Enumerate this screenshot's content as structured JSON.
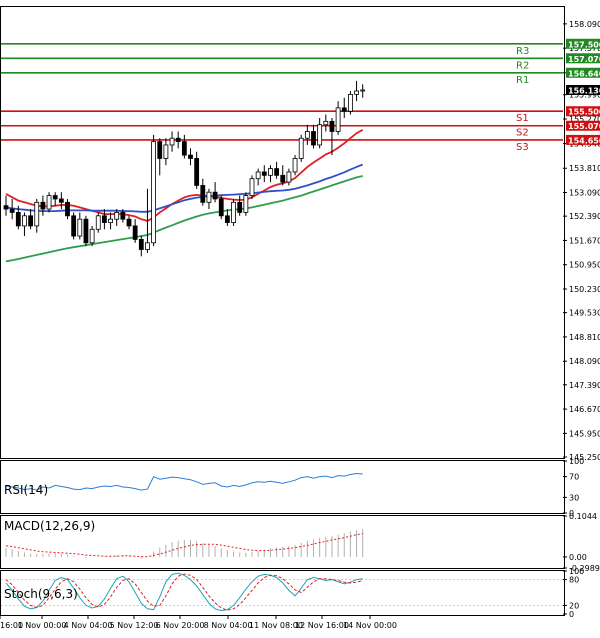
{
  "chart_data": {
    "type": "candlestick",
    "main": {
      "ylim": [
        145.25,
        158.59
      ],
      "y_ticks": [
        "158.090",
        "157.370",
        "156.640",
        "155.990",
        "155.270",
        "154.540",
        "153.810",
        "153.090",
        "152.390",
        "151.670",
        "150.950",
        "150.230",
        "149.530",
        "148.810",
        "148.090",
        "147.390",
        "146.670",
        "145.950",
        "145.250"
      ],
      "candles": [
        {
          "o": 152.7,
          "h": 153.0,
          "l": 152.4,
          "c": 152.6
        },
        {
          "o": 152.6,
          "h": 152.9,
          "l": 152.3,
          "c": 152.5
        },
        {
          "o": 152.5,
          "h": 152.7,
          "l": 152.0,
          "c": 152.1
        },
        {
          "o": 152.1,
          "h": 152.5,
          "l": 151.8,
          "c": 152.4
        },
        {
          "o": 152.4,
          "h": 152.6,
          "l": 152.0,
          "c": 152.1
        },
        {
          "o": 152.1,
          "h": 152.9,
          "l": 151.9,
          "c": 152.8
        },
        {
          "o": 152.8,
          "h": 153.0,
          "l": 152.4,
          "c": 152.6
        },
        {
          "o": 152.6,
          "h": 153.1,
          "l": 152.5,
          "c": 153.0
        },
        {
          "o": 153.0,
          "h": 153.1,
          "l": 152.7,
          "c": 152.9
        },
        {
          "o": 152.9,
          "h": 153.1,
          "l": 152.6,
          "c": 152.8
        },
        {
          "o": 152.8,
          "h": 152.9,
          "l": 152.3,
          "c": 152.4
        },
        {
          "o": 152.4,
          "h": 152.5,
          "l": 151.7,
          "c": 151.8
        },
        {
          "o": 151.8,
          "h": 152.5,
          "l": 151.7,
          "c": 152.3
        },
        {
          "o": 152.3,
          "h": 152.4,
          "l": 151.5,
          "c": 151.6
        },
        {
          "o": 151.6,
          "h": 152.1,
          "l": 151.5,
          "c": 152.0
        },
        {
          "o": 152.0,
          "h": 152.5,
          "l": 151.9,
          "c": 152.4
        },
        {
          "o": 152.4,
          "h": 152.6,
          "l": 152.0,
          "c": 152.2
        },
        {
          "o": 152.2,
          "h": 152.5,
          "l": 152.0,
          "c": 152.3
        },
        {
          "o": 152.3,
          "h": 152.6,
          "l": 152.1,
          "c": 152.5
        },
        {
          "o": 152.5,
          "h": 152.6,
          "l": 152.2,
          "c": 152.3
        },
        {
          "o": 152.3,
          "h": 152.4,
          "l": 152.0,
          "c": 152.1
        },
        {
          "o": 152.1,
          "h": 152.3,
          "l": 151.6,
          "c": 151.7
        },
        {
          "o": 151.7,
          "h": 151.8,
          "l": 151.2,
          "c": 151.4
        },
        {
          "o": 151.4,
          "h": 153.2,
          "l": 151.3,
          "c": 151.6
        },
        {
          "o": 151.6,
          "h": 154.8,
          "l": 151.5,
          "c": 154.6
        },
        {
          "o": 154.6,
          "h": 154.7,
          "l": 153.6,
          "c": 154.1
        },
        {
          "o": 154.1,
          "h": 154.7,
          "l": 153.9,
          "c": 154.5
        },
        {
          "o": 154.5,
          "h": 154.9,
          "l": 154.3,
          "c": 154.7
        },
        {
          "o": 154.7,
          "h": 154.9,
          "l": 154.4,
          "c": 154.6
        },
        {
          "o": 154.6,
          "h": 154.8,
          "l": 154.1,
          "c": 154.2
        },
        {
          "o": 154.2,
          "h": 154.4,
          "l": 153.9,
          "c": 154.1
        },
        {
          "o": 154.1,
          "h": 154.3,
          "l": 153.2,
          "c": 153.3
        },
        {
          "o": 153.3,
          "h": 153.5,
          "l": 152.7,
          "c": 152.8
        },
        {
          "o": 152.8,
          "h": 153.2,
          "l": 152.6,
          "c": 153.1
        },
        {
          "o": 153.1,
          "h": 153.4,
          "l": 152.8,
          "c": 152.9
        },
        {
          "o": 152.9,
          "h": 153.0,
          "l": 152.3,
          "c": 152.4
        },
        {
          "o": 152.4,
          "h": 152.6,
          "l": 152.1,
          "c": 152.2
        },
        {
          "o": 152.2,
          "h": 152.9,
          "l": 152.1,
          "c": 152.8
        },
        {
          "o": 152.8,
          "h": 153.0,
          "l": 152.4,
          "c": 152.5
        },
        {
          "o": 152.5,
          "h": 153.1,
          "l": 152.4,
          "c": 153.0
        },
        {
          "o": 153.0,
          "h": 153.6,
          "l": 152.9,
          "c": 153.5
        },
        {
          "o": 153.5,
          "h": 153.8,
          "l": 153.3,
          "c": 153.7
        },
        {
          "o": 153.7,
          "h": 153.9,
          "l": 153.4,
          "c": 153.6
        },
        {
          "o": 153.6,
          "h": 153.9,
          "l": 153.4,
          "c": 153.8
        },
        {
          "o": 153.8,
          "h": 154.0,
          "l": 153.5,
          "c": 153.6
        },
        {
          "o": 153.6,
          "h": 153.9,
          "l": 153.3,
          "c": 153.4
        },
        {
          "o": 153.4,
          "h": 153.8,
          "l": 153.3,
          "c": 153.7
        },
        {
          "o": 153.7,
          "h": 154.2,
          "l": 153.6,
          "c": 154.1
        },
        {
          "o": 154.1,
          "h": 154.8,
          "l": 154.0,
          "c": 154.7
        },
        {
          "o": 154.7,
          "h": 155.1,
          "l": 154.5,
          "c": 154.9
        },
        {
          "o": 154.9,
          "h": 155.1,
          "l": 154.4,
          "c": 154.5
        },
        {
          "o": 154.5,
          "h": 155.3,
          "l": 154.4,
          "c": 155.1
        },
        {
          "o": 155.1,
          "h": 155.4,
          "l": 154.9,
          "c": 155.2
        },
        {
          "o": 155.2,
          "h": 155.3,
          "l": 154.2,
          "c": 154.9
        },
        {
          "o": 154.9,
          "h": 155.8,
          "l": 154.8,
          "c": 155.6
        },
        {
          "o": 155.6,
          "h": 155.9,
          "l": 155.3,
          "c": 155.5
        },
        {
          "o": 155.5,
          "h": 156.1,
          "l": 155.4,
          "c": 156.0
        },
        {
          "o": 156.0,
          "h": 156.4,
          "l": 155.8,
          "c": 156.1
        },
        {
          "o": 156.1,
          "h": 156.3,
          "l": 155.9,
          "c": 156.13
        }
      ],
      "ma_series": [
        {
          "color": "#e02020",
          "values": [
            153.05,
            152.95,
            152.85,
            152.8,
            152.75,
            152.7,
            152.68,
            152.68,
            152.7,
            152.72,
            152.72,
            152.7,
            152.65,
            152.6,
            152.55,
            152.5,
            152.45,
            152.45,
            152.45,
            152.45,
            152.42,
            152.38,
            152.3,
            152.25,
            152.35,
            152.5,
            152.62,
            152.75,
            152.85,
            152.95,
            153.0,
            153.02,
            153.0,
            152.98,
            152.96,
            152.93,
            152.9,
            152.88,
            152.87,
            152.88,
            152.95,
            153.05,
            153.15,
            153.25,
            153.32,
            153.36,
            153.42,
            153.52,
            153.68,
            153.85,
            153.98,
            154.1,
            154.22,
            154.3,
            154.42,
            154.55,
            154.7,
            154.85,
            154.95
          ]
        },
        {
          "color": "#3050c8",
          "values": [
            152.65,
            152.62,
            152.6,
            152.58,
            152.56,
            152.55,
            152.54,
            152.54,
            152.54,
            152.55,
            152.56,
            152.56,
            152.56,
            152.56,
            152.55,
            152.55,
            152.55,
            152.55,
            152.55,
            152.54,
            152.54,
            152.53,
            152.52,
            152.52,
            152.56,
            152.62,
            152.68,
            152.74,
            152.8,
            152.86,
            152.9,
            152.94,
            152.96,
            152.98,
            153.0,
            153.01,
            153.02,
            153.03,
            153.04,
            153.05,
            153.07,
            153.09,
            153.11,
            153.13,
            153.14,
            153.15,
            153.17,
            153.2,
            153.25,
            153.3,
            153.36,
            153.42,
            153.49,
            153.55,
            153.62,
            153.69,
            153.77,
            153.85,
            153.92
          ]
        },
        {
          "color": "#2e9e4e",
          "values": [
            151.05,
            151.08,
            151.12,
            151.16,
            151.2,
            151.24,
            151.28,
            151.32,
            151.36,
            151.4,
            151.44,
            151.47,
            151.5,
            151.53,
            151.56,
            151.59,
            151.62,
            151.65,
            151.68,
            151.71,
            151.74,
            151.77,
            151.8,
            151.83,
            151.9,
            151.98,
            152.05,
            152.12,
            152.19,
            152.26,
            152.32,
            152.38,
            152.43,
            152.47,
            152.5,
            152.53,
            152.56,
            152.58,
            152.6,
            152.62,
            152.65,
            152.69,
            152.73,
            152.77,
            152.81,
            152.85,
            152.9,
            152.95,
            153.0,
            153.06,
            153.12,
            153.18,
            153.24,
            153.3,
            153.36,
            153.42,
            153.48,
            153.54,
            153.58
          ]
        }
      ],
      "levels": [
        {
          "name": "R3",
          "value": "157.500",
          "color": "#1f8a1f"
        },
        {
          "name": "R2",
          "value": "157.070",
          "color": "#1f8a1f"
        },
        {
          "name": "R1",
          "value": "156.640",
          "color": "#1f8a1f"
        },
        {
          "name": "S1",
          "value": "155.500",
          "color": "#d01010"
        },
        {
          "name": "S2",
          "value": "155.070",
          "color": "#d01010"
        },
        {
          "name": "S3",
          "value": "154.650",
          "color": "#d01010"
        }
      ],
      "current_price": "156.130"
    },
    "rsi": {
      "label": "RSI(14)",
      "ylim": [
        0,
        100
      ],
      "ticks": [
        "100",
        "70",
        "30",
        "0"
      ],
      "values": [
        52,
        50,
        48,
        45,
        47,
        44,
        50,
        48,
        53,
        51,
        49,
        46,
        45,
        48,
        47,
        50,
        52,
        51,
        53,
        50,
        49,
        47,
        44,
        46,
        70,
        65,
        67,
        69,
        68,
        66,
        64,
        60,
        55,
        57,
        58,
        52,
        50,
        53,
        51,
        54,
        58,
        60,
        59,
        61,
        59,
        57,
        60,
        63,
        68,
        70,
        67,
        70,
        71,
        68,
        72,
        71,
        74,
        76,
        75
      ]
    },
    "macd": {
      "label": "MACD(12,26,9)",
      "ticks": [
        "0.1044",
        "0.00",
        "-0.2989"
      ],
      "ylim": [
        -0.2989,
        1.1044
      ],
      "hist": [
        0.25,
        0.21,
        0.16,
        0.12,
        0.09,
        0.08,
        0.08,
        0.09,
        0.1,
        0.09,
        0.06,
        0.02,
        0.0,
        -0.02,
        -0.01,
        0.0,
        0.01,
        0.02,
        0.04,
        0.04,
        0.03,
        0.0,
        -0.04,
        0.0,
        0.15,
        0.25,
        0.33,
        0.4,
        0.44,
        0.46,
        0.46,
        0.42,
        0.36,
        0.33,
        0.29,
        0.23,
        0.18,
        0.15,
        0.12,
        0.11,
        0.13,
        0.16,
        0.2,
        0.23,
        0.26,
        0.27,
        0.29,
        0.32,
        0.38,
        0.44,
        0.47,
        0.51,
        0.55,
        0.56,
        0.6,
        0.64,
        0.68,
        0.72,
        0.75
      ],
      "signal": [
        0.3,
        0.28,
        0.25,
        0.22,
        0.19,
        0.16,
        0.14,
        0.13,
        0.12,
        0.11,
        0.1,
        0.09,
        0.07,
        0.05,
        0.04,
        0.03,
        0.02,
        0.02,
        0.02,
        0.03,
        0.03,
        0.02,
        0.01,
        0.01,
        0.04,
        0.08,
        0.13,
        0.18,
        0.23,
        0.27,
        0.31,
        0.33,
        0.34,
        0.34,
        0.34,
        0.32,
        0.29,
        0.26,
        0.23,
        0.2,
        0.18,
        0.17,
        0.17,
        0.18,
        0.2,
        0.21,
        0.23,
        0.25,
        0.28,
        0.31,
        0.35,
        0.39,
        0.42,
        0.46,
        0.49,
        0.52,
        0.56,
        0.6,
        0.63
      ]
    },
    "stoch": {
      "label": "Stoch(9,6,3)",
      "ylim": [
        0,
        100
      ],
      "ticks": [
        "100",
        "80",
        "20",
        "0"
      ],
      "k": [
        72,
        55,
        35,
        18,
        12,
        15,
        30,
        55,
        78,
        85,
        80,
        60,
        38,
        20,
        14,
        18,
        35,
        60,
        82,
        88,
        75,
        50,
        25,
        12,
        10,
        40,
        75,
        92,
        95,
        90,
        80,
        65,
        45,
        25,
        12,
        8,
        10,
        20,
        38,
        58,
        75,
        88,
        92,
        90,
        85,
        72,
        55,
        42,
        60,
        80,
        85,
        82,
        78,
        80,
        75,
        70,
        74,
        80,
        82
      ],
      "d": [
        80,
        68,
        50,
        32,
        20,
        15,
        20,
        38,
        58,
        75,
        82,
        75,
        58,
        38,
        22,
        16,
        22,
        40,
        62,
        78,
        82,
        70,
        50,
        30,
        18,
        20,
        42,
        70,
        88,
        93,
        90,
        80,
        62,
        42,
        26,
        14,
        9,
        12,
        22,
        38,
        55,
        72,
        85,
        90,
        89,
        82,
        70,
        56,
        50,
        62,
        75,
        82,
        82,
        80,
        78,
        74,
        72,
        74,
        78
      ]
    },
    "x_ticks": [
      "16:00",
      "1 Nov 00:00",
      "4 Nov 04:00",
      "5 Nov 12:00",
      "6 Nov 20:00",
      "8 Nov 04:00",
      "11 Nov 08:00",
      "12 Nov 16:00",
      "14 Nov 00:00"
    ]
  }
}
